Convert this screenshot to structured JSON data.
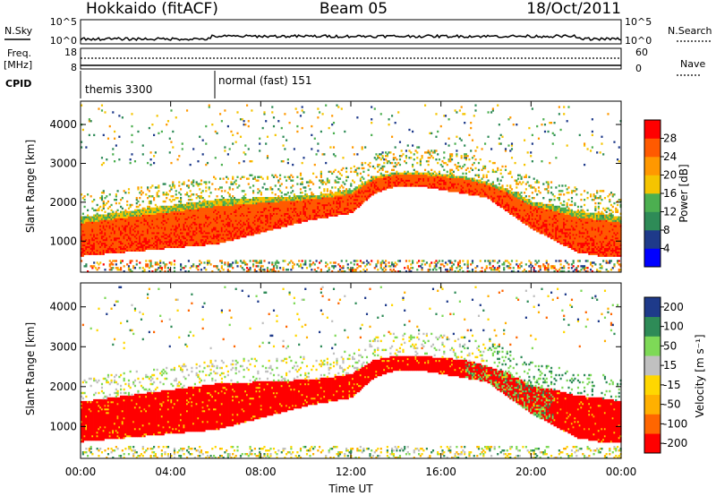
{
  "header": {
    "station": "Hokkaido (fitACF)",
    "beam": "Beam 05",
    "date": "18/Oct/2011"
  },
  "strips": {
    "nsky_label": "N.Sky",
    "nsky_ticks": [
      "10^5",
      "10^0"
    ],
    "nsearch_label": "N.Search",
    "nsearch_ticks": [
      "10^5",
      "10^0"
    ],
    "freq_label": "Freq.",
    "freq_unit": "[MHz]",
    "freq_ticks": [
      "18",
      "8"
    ],
    "nave_label": "Nave",
    "nave_ticks": [
      "60",
      "0"
    ],
    "cpid_label": "CPID",
    "cpid_modes": [
      {
        "name": "themis 3300",
        "start_hour": 0
      },
      {
        "name": "normal (fast) 151",
        "start_hour": 6
      }
    ]
  },
  "colors": {
    "power_scale": [
      "#0000ff",
      "#1e3a8a",
      "#2e8b57",
      "#4caf50",
      "#f5c400",
      "#ff9800",
      "#ff5a00",
      "#ff0000"
    ],
    "velocity_scale": [
      "#ff0000",
      "#ff6600",
      "#ffb000",
      "#ffd700",
      "#c0c0c0",
      "#7ed957",
      "#2e8b57",
      "#1e3a8a"
    ]
  },
  "chart_data": [
    {
      "type": "heatmap",
      "panel": "power",
      "ylabel": "Slant Range [km]",
      "xlim": [
        0,
        24
      ],
      "ylim": [
        200,
        4600
      ],
      "y_ticks": [
        1000,
        2000,
        3000,
        4000
      ],
      "x_ticks": [
        0,
        4,
        8,
        12,
        16,
        20,
        24
      ],
      "x_tick_labels": [
        "00:00",
        "04:00",
        "08:00",
        "12:00",
        "16:00",
        "20:00",
        "00:00"
      ],
      "colorbar": {
        "label": "Power [dB]",
        "range": [
          0,
          32
        ],
        "ticks": [
          4,
          8,
          12,
          16,
          20,
          24,
          28
        ]
      },
      "main_echo_band": {
        "hours": [
          0,
          2,
          4,
          6,
          8,
          10,
          11,
          12,
          13,
          14,
          15,
          16,
          17,
          18,
          19,
          20,
          21,
          22,
          23,
          24
        ],
        "lower_km": [
          600,
          700,
          800,
          900,
          1200,
          1500,
          1600,
          1700,
          2200,
          2400,
          2400,
          2300,
          2200,
          2100,
          1700,
          1300,
          1000,
          700,
          600,
          600
        ],
        "upper_km": [
          1600,
          1750,
          1900,
          2050,
          2100,
          2150,
          2200,
          2300,
          2650,
          2750,
          2750,
          2700,
          2650,
          2500,
          2300,
          2000,
          1900,
          1750,
          1700,
          1600
        ],
        "power_db": 28
      }
    },
    {
      "type": "heatmap",
      "panel": "velocity",
      "ylabel": "Slant Range [km]",
      "xlabel": "Time UT",
      "xlim": [
        0,
        24
      ],
      "ylim": [
        200,
        4600
      ],
      "y_ticks": [
        1000,
        2000,
        3000,
        4000
      ],
      "x_ticks": [
        0,
        4,
        8,
        12,
        16,
        20,
        24
      ],
      "x_tick_labels": [
        "00:00",
        "04:00",
        "08:00",
        "12:00",
        "16:00",
        "20:00",
        "00:00"
      ],
      "colorbar": {
        "label": "Velocity [m s⁻¹]",
        "range": [
          -250,
          250
        ],
        "ticks": [
          200,
          100,
          50,
          15,
          -15,
          -50,
          -100,
          -200
        ]
      },
      "main_echo_band": {
        "hours": [
          0,
          2,
          4,
          6,
          8,
          10,
          11,
          12,
          13,
          14,
          15,
          16,
          17,
          18,
          19,
          20,
          21,
          22,
          23,
          24
        ],
        "lower_km": [
          600,
          700,
          800,
          900,
          1200,
          1500,
          1600,
          1700,
          2200,
          2400,
          2400,
          2300,
          2200,
          2100,
          1700,
          1300,
          1000,
          700,
          600,
          600
        ],
        "upper_km": [
          1600,
          1750,
          1900,
          2050,
          2100,
          2150,
          2200,
          2300,
          2650,
          2750,
          2750,
          2700,
          2650,
          2500,
          2300,
          2000,
          1900,
          1750,
          1700,
          1600
        ],
        "velocity_ms": 0
      }
    }
  ]
}
